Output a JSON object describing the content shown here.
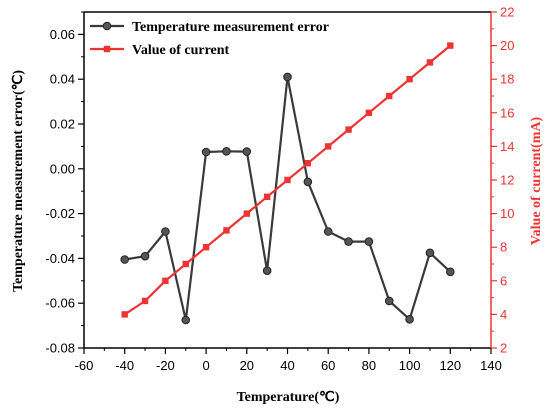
{
  "chart_data": {
    "type": "line",
    "title": "",
    "xlabel": "Temperature(℃)",
    "ylabel_left": "Temperature measurement error(℃)",
    "ylabel_right": "Value of current(mA)",
    "xlim": [
      -60,
      140
    ],
    "ylim_left": [
      -0.08,
      0.07
    ],
    "ylim_right": [
      2,
      22
    ],
    "x_ticks": [
      -60,
      -40,
      -20,
      0,
      20,
      40,
      60,
      80,
      100,
      120,
      140
    ],
    "y_left_ticks": [
      -0.08,
      -0.06,
      -0.04,
      -0.02,
      0.0,
      0.02,
      0.04,
      0.06
    ],
    "y_right_ticks": [
      2,
      4,
      6,
      8,
      10,
      12,
      14,
      16,
      18,
      20,
      22
    ],
    "grid": false,
    "legend_position": "top-left",
    "series": [
      {
        "name": "Temperature measurement error",
        "axis": "left",
        "color": "#3a3a3a",
        "marker": "circle",
        "x": [
          -40,
          -30,
          -20,
          -10,
          0,
          10,
          20,
          30,
          40,
          50,
          60,
          70,
          80,
          90,
          100,
          110,
          120
        ],
        "y": [
          -0.0405,
          -0.039,
          -0.028,
          -0.0675,
          0.0075,
          0.0078,
          0.0077,
          -0.0455,
          0.041,
          -0.0058,
          -0.028,
          -0.0325,
          -0.0325,
          -0.059,
          -0.0672,
          -0.0375,
          -0.046
        ]
      },
      {
        "name": "Value of current",
        "axis": "right",
        "color": "#ee3333",
        "marker": "square",
        "x": [
          -40,
          -30,
          -20,
          -10,
          0,
          10,
          20,
          30,
          40,
          50,
          60,
          70,
          80,
          90,
          100,
          110,
          120
        ],
        "y": [
          4,
          4.8,
          6,
          7,
          8,
          9,
          10,
          11,
          12,
          13,
          14,
          15,
          16,
          17,
          18,
          19,
          20
        ]
      }
    ]
  }
}
